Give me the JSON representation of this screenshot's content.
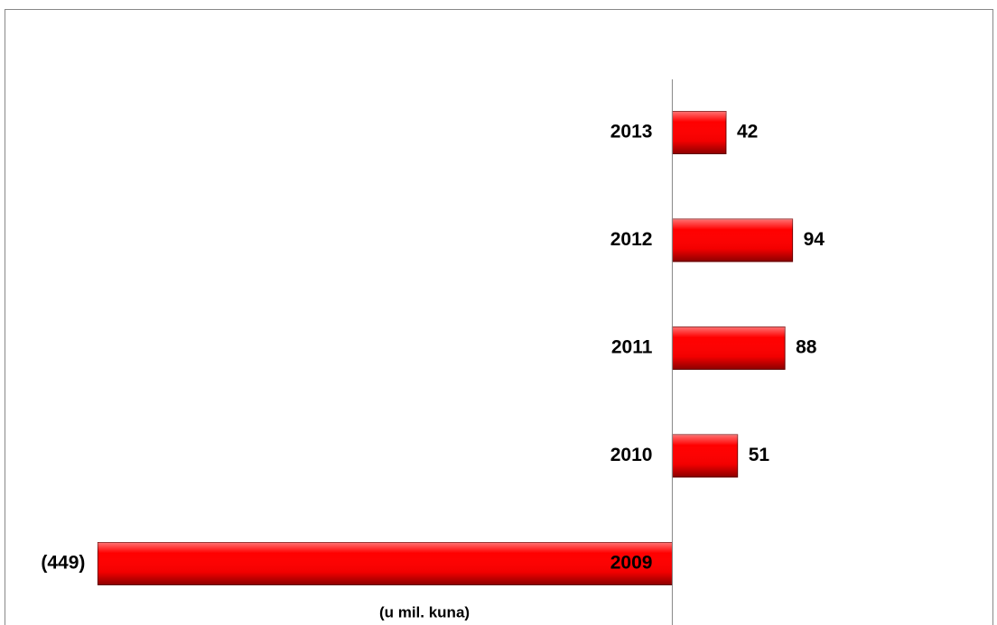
{
  "chart_data": {
    "type": "hbar",
    "x_label": "(u mil. kuna)",
    "categories": [
      "2009",
      "2010",
      "2011",
      "2012",
      "2013"
    ],
    "values": [
      -449,
      51,
      88,
      94,
      42
    ],
    "value_labels": [
      "(449)",
      "51",
      "88",
      "94",
      "42"
    ],
    "color": "#ff0000",
    "xlim": [
      -522,
      251
    ]
  }
}
